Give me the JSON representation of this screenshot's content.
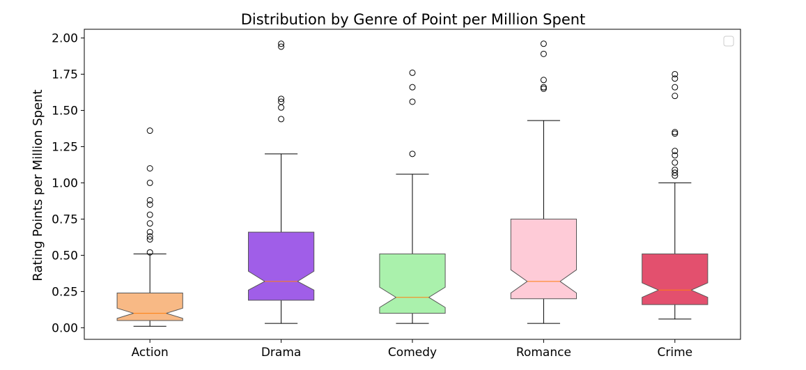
{
  "chart_data": {
    "type": "boxplot",
    "title": "Distribution by Genre of Point per Million Spent",
    "xlabel": "",
    "ylabel": "Rating Points per Million Spent",
    "ylim": [
      -0.08,
      2.06
    ],
    "yticks": [
      "0.00",
      "0.25",
      "0.50",
      "0.75",
      "1.00",
      "1.25",
      "1.50",
      "1.75",
      "2.00"
    ],
    "ytick_values": [
      0,
      0.25,
      0.5,
      0.75,
      1.0,
      1.25,
      1.5,
      1.75,
      2.0
    ],
    "categories": [
      "Action",
      "Drama",
      "Comedy",
      "Romance",
      "Crime"
    ],
    "notched": true,
    "median_color": "#ff7f0e",
    "legend": {
      "position": "top-right",
      "entries": []
    },
    "grid": false,
    "boxes": [
      {
        "category": "Action",
        "color": "#f8b985",
        "whisker_low": 0.01,
        "q1": 0.05,
        "median": 0.1,
        "q3": 0.24,
        "whisker_high": 0.51,
        "notch_low": 0.065,
        "notch_high": 0.135,
        "outliers": [
          0.52,
          0.61,
          0.63,
          0.66,
          0.72,
          0.78,
          0.85,
          0.88,
          1.0,
          1.1,
          1.36
        ]
      },
      {
        "category": "Drama",
        "color": "#a05ee8",
        "whisker_low": 0.03,
        "q1": 0.19,
        "median": 0.32,
        "q3": 0.66,
        "whisker_high": 1.2,
        "notch_low": 0.26,
        "notch_high": 0.39,
        "outliers": [
          1.44,
          1.52,
          1.56,
          1.58,
          1.94,
          1.96
        ]
      },
      {
        "category": "Comedy",
        "color": "#aaf1ac",
        "whisker_low": 0.03,
        "q1": 0.1,
        "median": 0.21,
        "q3": 0.51,
        "whisker_high": 1.06,
        "notch_low": 0.14,
        "notch_high": 0.28,
        "outliers": [
          1.2,
          1.56,
          1.66,
          1.76
        ]
      },
      {
        "category": "Romance",
        "color": "#fecbd7",
        "whisker_low": 0.03,
        "q1": 0.2,
        "median": 0.32,
        "q3": 0.75,
        "whisker_high": 1.43,
        "notch_low": 0.24,
        "notch_high": 0.4,
        "outliers": [
          1.65,
          1.66,
          1.71,
          1.89,
          1.96
        ]
      },
      {
        "category": "Crime",
        "color": "#e3506e",
        "whisker_low": 0.06,
        "q1": 0.16,
        "median": 0.26,
        "q3": 0.51,
        "whisker_high": 1.0,
        "notch_low": 0.21,
        "notch_high": 0.31,
        "outliers": [
          1.05,
          1.07,
          1.09,
          1.14,
          1.19,
          1.22,
          1.34,
          1.35,
          1.6,
          1.66,
          1.72,
          1.75
        ]
      }
    ]
  }
}
